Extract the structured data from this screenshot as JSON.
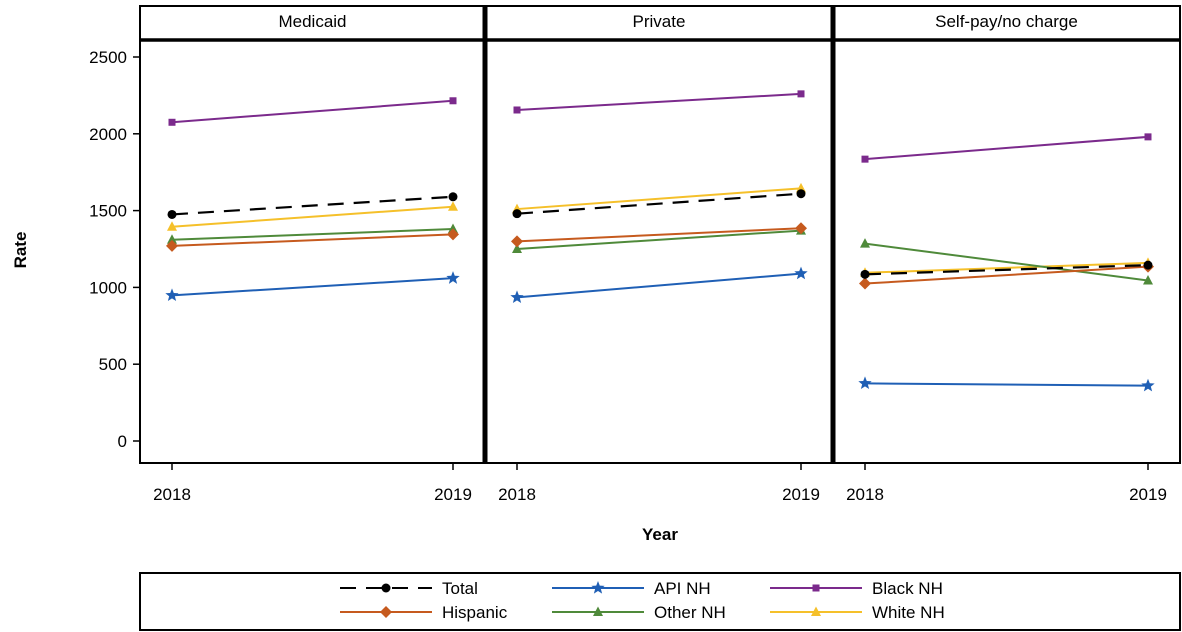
{
  "chart_data": {
    "type": "line",
    "x": [
      2018,
      2019
    ],
    "xlabel": "Year",
    "ylabel": "Rate",
    "ylim": [
      0,
      2500
    ],
    "yticks": [
      0,
      500,
      1000,
      1500,
      2000,
      2500
    ],
    "xtick_labels": [
      "2018",
      "2019"
    ],
    "grid": false,
    "legend_position": "bottom",
    "panels": [
      {
        "title": "Medicaid",
        "series": [
          {
            "name": "Total",
            "values": [
              1475,
              1590
            ]
          },
          {
            "name": "API NH",
            "values": [
              948,
              1060
            ]
          },
          {
            "name": "Black NH",
            "values": [
              2075,
              2215
            ]
          },
          {
            "name": "Hispanic",
            "values": [
              1270,
              1345
            ]
          },
          {
            "name": "Other NH",
            "values": [
              1310,
              1380
            ]
          },
          {
            "name": "White NH",
            "values": [
              1395,
              1525
            ]
          }
        ]
      },
      {
        "title": "Private",
        "series": [
          {
            "name": "Total",
            "values": [
              1480,
              1610
            ]
          },
          {
            "name": "API NH",
            "values": [
              935,
              1090
            ]
          },
          {
            "name": "Black NH",
            "values": [
              2155,
              2260
            ]
          },
          {
            "name": "Hispanic",
            "values": [
              1300,
              1385
            ]
          },
          {
            "name": "Other NH",
            "values": [
              1250,
              1370
            ]
          },
          {
            "name": "White NH",
            "values": [
              1510,
              1645
            ]
          }
        ]
      },
      {
        "title": "Self-pay/no charge",
        "series": [
          {
            "name": "Total",
            "values": [
              1085,
              1145
            ]
          },
          {
            "name": "API NH",
            "values": [
              375,
              360
            ]
          },
          {
            "name": "Black NH",
            "values": [
              1835,
              1980
            ]
          },
          {
            "name": "Hispanic",
            "values": [
              1025,
              1135
            ]
          },
          {
            "name": "Other NH",
            "values": [
              1285,
              1045
            ]
          },
          {
            "name": "White NH",
            "values": [
              1095,
              1160
            ]
          }
        ]
      }
    ],
    "series_styles": [
      {
        "name": "Total",
        "color": "#000000",
        "marker": "circle",
        "dash": true
      },
      {
        "name": "API NH",
        "color": "#1f5fb5",
        "marker": "star",
        "dash": false
      },
      {
        "name": "Black NH",
        "color": "#7b2a8c",
        "marker": "square",
        "dash": false
      },
      {
        "name": "Hispanic",
        "color": "#c65a1e",
        "marker": "diamond",
        "dash": false
      },
      {
        "name": "Other NH",
        "color": "#4f8a3a",
        "marker": "triangle",
        "dash": false
      },
      {
        "name": "White NH",
        "color": "#f5c02a",
        "marker": "triangle",
        "dash": false
      }
    ],
    "legend_order": [
      "Total",
      "API NH",
      "Black NH",
      "Hispanic",
      "Other NH",
      "White NH"
    ]
  }
}
